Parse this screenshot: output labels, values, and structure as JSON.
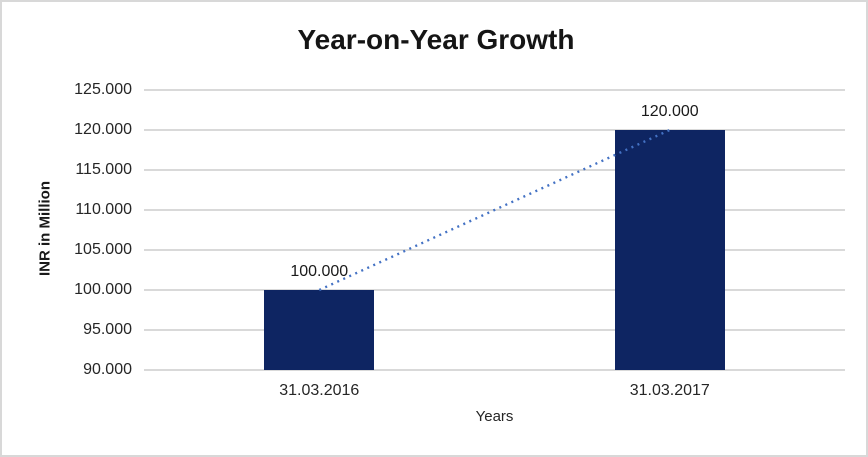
{
  "chart_data": {
    "type": "bar",
    "title": "Year-on-Year Growth",
    "xlabel": "Years",
    "ylabel": "INR in Million",
    "categories": [
      "31.03.2016",
      "31.03.2017"
    ],
    "values": [
      100000,
      120000
    ],
    "value_labels": [
      "100.000",
      "120.000"
    ],
    "ylim": [
      90000,
      125000
    ],
    "ytick_step": 5000,
    "ytick_labels": [
      "90.000",
      "95.000",
      "100.000",
      "105.000",
      "110.000",
      "115.000",
      "120.000",
      "125.000"
    ],
    "grid": true,
    "legend": "none",
    "bar_color": "#0e2562",
    "trendline": {
      "style": "dotted",
      "color": "#4472c4",
      "from_value": 100000,
      "to_value": 120000
    },
    "gridline_color": "#d9d9d9",
    "frame_border_color": "#d8d8d8"
  }
}
